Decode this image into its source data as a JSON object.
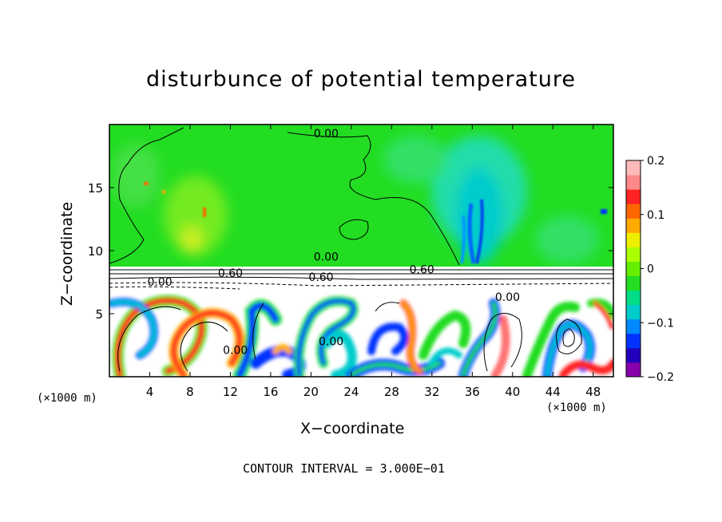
{
  "chart_data": {
    "type": "heatmap",
    "title": "disturbunce of potential temperature",
    "xlabel": "X−coordinate",
    "ylabel": "Z−coordinate",
    "x_unit_left": "(×1000 m)",
    "x_unit_right": "(×1000 m)",
    "xlim": [
      0,
      50
    ],
    "ylim": [
      0,
      20
    ],
    "x_ticks": [
      4,
      8,
      12,
      16,
      20,
      24,
      28,
      32,
      36,
      40,
      44,
      48
    ],
    "y_ticks": [
      5,
      10,
      15
    ],
    "colorbar": {
      "range": [
        -0.2,
        0.2
      ],
      "ticks": [
        0.2,
        0.1,
        0,
        -0.1,
        -0.2
      ],
      "tick_labels": [
        "0.2",
        "0.1",
        "0",
        "−0.1",
        "−0.2"
      ],
      "colors": [
        "#8800aa",
        "#2200bb",
        "#0033ff",
        "#0088ff",
        "#00cccc",
        "#00dd88",
        "#22dd22",
        "#66ee00",
        "#aaff00",
        "#eeee00",
        "#ffaa00",
        "#ff6600",
        "#ff2222",
        "#ff8888",
        "#ffbbbb"
      ]
    },
    "contour_labels": [
      {
        "text": "0.00",
        "x": 21.5,
        "y": 19.0
      },
      {
        "text": "0.00",
        "x": 21.5,
        "y": 9.2
      },
      {
        "text": "0.60",
        "x": 31.0,
        "y": 8.2
      },
      {
        "text": "0.60",
        "x": 12.0,
        "y": 7.9
      },
      {
        "text": "0.00",
        "x": 5.0,
        "y": 7.2
      },
      {
        "text": "0.60",
        "x": 21.0,
        "y": 7.6
      },
      {
        "text": "0.00",
        "x": 39.5,
        "y": 6.0
      },
      {
        "text": "0.00",
        "x": 22.0,
        "y": 2.5
      },
      {
        "text": "0.00",
        "x": 12.5,
        "y": 1.8
      }
    ],
    "contour_interval": "CONTOUR INTERVAL = 3.000E−01"
  }
}
